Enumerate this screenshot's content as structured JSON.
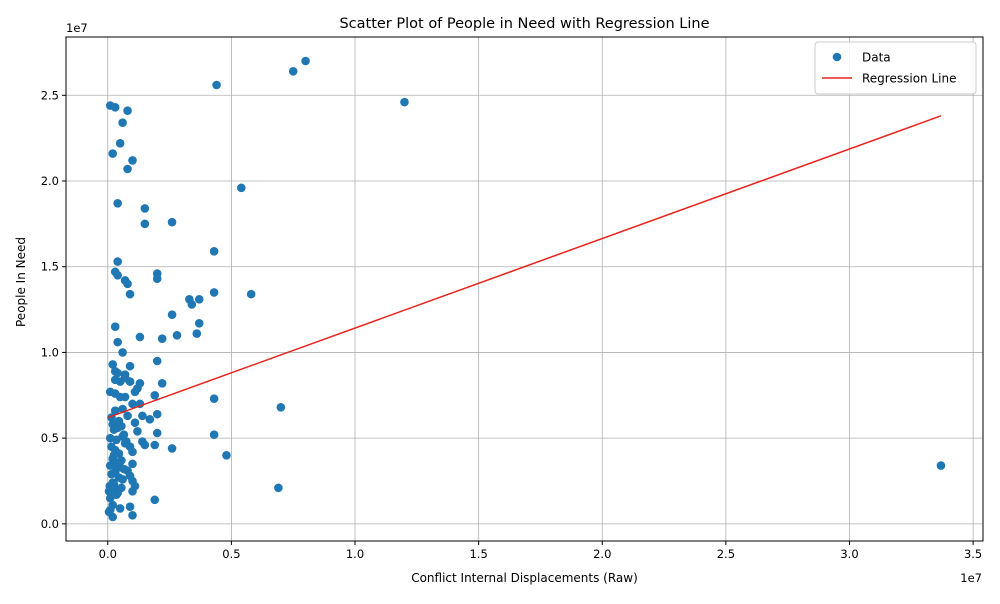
{
  "chart_data": {
    "type": "scatter",
    "title": "Scatter Plot of People in Need with Regression Line",
    "xlabel": "Conflict Internal Displacements (Raw)",
    "ylabel": "People In Need",
    "x_scale_label": "1e7",
    "y_scale_label": "1e7",
    "xlim": [
      -1690000,
      35400000
    ],
    "ylim": [
      -1000000,
      28400000
    ],
    "x_ticks": [
      0,
      5000000,
      10000000,
      15000000,
      20000000,
      25000000,
      30000000,
      35000000
    ],
    "x_tick_labels": [
      "0.0",
      "0.5",
      "1.0",
      "1.5",
      "2.0",
      "2.5",
      "3.0",
      "3.5"
    ],
    "y_ticks": [
      0,
      5000000,
      10000000,
      15000000,
      20000000,
      25000000
    ],
    "y_tick_labels": [
      "0.0",
      "0.5",
      "1.0",
      "1.5",
      "2.0",
      "2.5"
    ],
    "grid": true,
    "legend_position": "upper-right",
    "colors": {
      "points": "#1f77b4",
      "regression": "#e8231b",
      "grid": "#b0b0b0"
    },
    "series": [
      {
        "name": "Data",
        "kind": "points",
        "points": [
          [
            8000000,
            27000000
          ],
          [
            7500000,
            26400000
          ],
          [
            4400000,
            25600000
          ],
          [
            12000000,
            24600000
          ],
          [
            100000,
            24400000
          ],
          [
            300000,
            24300000
          ],
          [
            800000,
            24100000
          ],
          [
            600000,
            23400000
          ],
          [
            500000,
            22200000
          ],
          [
            1000000,
            21200000
          ],
          [
            200000,
            21600000
          ],
          [
            800000,
            20700000
          ],
          [
            5400000,
            19600000
          ],
          [
            400000,
            18700000
          ],
          [
            1500000,
            18400000
          ],
          [
            1500000,
            17500000
          ],
          [
            2600000,
            17600000
          ],
          [
            4300000,
            15900000
          ],
          [
            400000,
            15300000
          ],
          [
            300000,
            14700000
          ],
          [
            400000,
            14500000
          ],
          [
            700000,
            14200000
          ],
          [
            2000000,
            14600000
          ],
          [
            2000000,
            14300000
          ],
          [
            800000,
            14000000
          ],
          [
            900000,
            13400000
          ],
          [
            4300000,
            13500000
          ],
          [
            5800000,
            13400000
          ],
          [
            3300000,
            13100000
          ],
          [
            3700000,
            13100000
          ],
          [
            3400000,
            12800000
          ],
          [
            2600000,
            12200000
          ],
          [
            3700000,
            11700000
          ],
          [
            300000,
            11500000
          ],
          [
            1300000,
            10900000
          ],
          [
            2800000,
            11000000
          ],
          [
            3600000,
            11100000
          ],
          [
            2200000,
            10800000
          ],
          [
            400000,
            10600000
          ],
          [
            600000,
            10000000
          ],
          [
            2000000,
            9500000
          ],
          [
            200000,
            9300000
          ],
          [
            900000,
            9200000
          ],
          [
            300000,
            8900000
          ],
          [
            400000,
            8800000
          ],
          [
            700000,
            8700000
          ],
          [
            300000,
            8400000
          ],
          [
            500000,
            8300000
          ],
          [
            900000,
            8300000
          ],
          [
            1300000,
            8200000
          ],
          [
            2200000,
            8200000
          ],
          [
            700000,
            8500000
          ],
          [
            1200000,
            7900000
          ],
          [
            100000,
            7700000
          ],
          [
            300000,
            7600000
          ],
          [
            1100000,
            7700000
          ],
          [
            1900000,
            7500000
          ],
          [
            500000,
            7400000
          ],
          [
            700000,
            7400000
          ],
          [
            4300000,
            7300000
          ],
          [
            7000000,
            6800000
          ],
          [
            1000000,
            7000000
          ],
          [
            1300000,
            7000000
          ],
          [
            300000,
            6600000
          ],
          [
            600000,
            6700000
          ],
          [
            1400000,
            6300000
          ],
          [
            2000000,
            6400000
          ],
          [
            800000,
            6300000
          ],
          [
            1700000,
            6100000
          ],
          [
            1100000,
            5900000
          ],
          [
            200000,
            5800000
          ],
          [
            400000,
            5600000
          ],
          [
            1200000,
            5400000
          ],
          [
            2000000,
            5300000
          ],
          [
            4300000,
            5200000
          ],
          [
            600000,
            5100000
          ],
          [
            100000,
            5000000
          ],
          [
            1400000,
            4800000
          ],
          [
            1900000,
            4600000
          ],
          [
            700000,
            4700000
          ],
          [
            1500000,
            4600000
          ],
          [
            900000,
            4500000
          ],
          [
            2600000,
            4400000
          ],
          [
            300000,
            4300000
          ],
          [
            1000000,
            4200000
          ],
          [
            4800000,
            4000000
          ],
          [
            200000,
            3800000
          ],
          [
            300000,
            3600000
          ],
          [
            1000000,
            3500000
          ],
          [
            33700000,
            3400000
          ],
          [
            100000,
            3400000
          ],
          [
            500000,
            3300000
          ],
          [
            800000,
            3100000
          ],
          [
            300000,
            3000000
          ],
          [
            900000,
            2800000
          ],
          [
            600000,
            2600000
          ],
          [
            1000000,
            2500000
          ],
          [
            200000,
            2400000
          ],
          [
            1100000,
            2200000
          ],
          [
            6900000,
            2100000
          ],
          [
            300000,
            2000000
          ],
          [
            1000000,
            1900000
          ],
          [
            400000,
            1800000
          ],
          [
            100000,
            1500000
          ],
          [
            1900000,
            1400000
          ],
          [
            200000,
            1100000
          ],
          [
            900000,
            1000000
          ],
          [
            500000,
            900000
          ],
          [
            100000,
            800000
          ],
          [
            1000000,
            500000
          ],
          [
            200000,
            400000
          ],
          [
            50000,
            700000
          ],
          [
            150000,
            6200000
          ],
          [
            250000,
            5500000
          ],
          [
            350000,
            4900000
          ],
          [
            450000,
            4100000
          ],
          [
            550000,
            3700000
          ],
          [
            650000,
            3200000
          ],
          [
            150000,
            2900000
          ],
          [
            250000,
            2300000
          ],
          [
            350000,
            1700000
          ],
          [
            450000,
            6000000
          ],
          [
            550000,
            5700000
          ],
          [
            650000,
            5200000
          ],
          [
            750000,
            4800000
          ],
          [
            150000,
            4500000
          ],
          [
            250000,
            4000000
          ],
          [
            350000,
            3300000
          ],
          [
            450000,
            2700000
          ],
          [
            550000,
            2100000
          ],
          [
            50000,
            1900000
          ],
          [
            80000,
            2200000
          ]
        ]
      },
      {
        "name": "Regression Line",
        "kind": "line",
        "x": [
          0,
          33700000
        ],
        "y": [
          6200000,
          23800000
        ]
      }
    ]
  }
}
